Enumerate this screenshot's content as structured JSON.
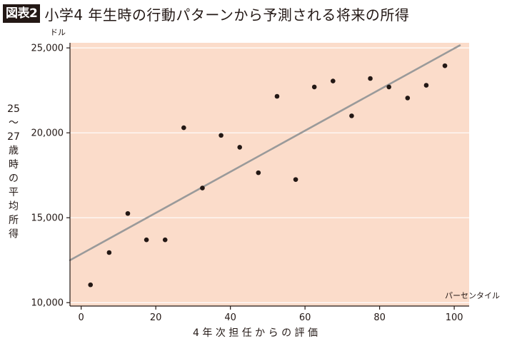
{
  "figure": {
    "badge": "図表2",
    "title": "小学4 年生時の行動パターンから予測される将来の所得"
  },
  "chart_data": {
    "type": "scatter",
    "title": "小学4 年生時の行動パターンから予測される将来の所得",
    "xlabel": "4 年 次 担 任 か ら の 評 価",
    "x_unit": "パーセンタイル",
    "ylabel": "25 ～ 27 歳 時 の 平 均 所 得",
    "y_unit": "ドル",
    "xlim": [
      -3,
      104
    ],
    "ylim": [
      9800,
      25300
    ],
    "x_ticks": [
      0,
      20,
      40,
      60,
      80,
      100
    ],
    "x_tick_labels": [
      "0",
      "20",
      "40",
      "60",
      "80",
      "100"
    ],
    "y_ticks": [
      10000,
      15000,
      20000,
      25000
    ],
    "y_tick_labels": [
      "10,000",
      "15,000",
      "20,000",
      "25,000"
    ],
    "grid": "horizontal",
    "points": [
      {
        "x": 2.5,
        "y": 11050
      },
      {
        "x": 7.5,
        "y": 12950
      },
      {
        "x": 12.5,
        "y": 15250
      },
      {
        "x": 17.5,
        "y": 13700
      },
      {
        "x": 22.5,
        "y": 13700
      },
      {
        "x": 27.5,
        "y": 20300
      },
      {
        "x": 32.5,
        "y": 16750
      },
      {
        "x": 37.5,
        "y": 19850
      },
      {
        "x": 42.5,
        "y": 19150
      },
      {
        "x": 47.5,
        "y": 17650
      },
      {
        "x": 52.5,
        "y": 22150
      },
      {
        "x": 57.5,
        "y": 17250
      },
      {
        "x": 62.5,
        "y": 22700
      },
      {
        "x": 67.5,
        "y": 23050
      },
      {
        "x": 72.5,
        "y": 21000
      },
      {
        "x": 77.5,
        "y": 23200
      },
      {
        "x": 82.5,
        "y": 22700
      },
      {
        "x": 87.5,
        "y": 22050
      },
      {
        "x": 92.5,
        "y": 22800
      },
      {
        "x": 97.5,
        "y": 23950
      }
    ],
    "trend_line": {
      "x": [
        -3,
        101.5
      ],
      "y": [
        12500,
        25150
      ]
    },
    "colors": {
      "plot_background": "#fbdcca",
      "gridline": "#ffffff",
      "trend_line": "#9a9a9a",
      "point": "#231815",
      "axis": "#231815"
    }
  }
}
